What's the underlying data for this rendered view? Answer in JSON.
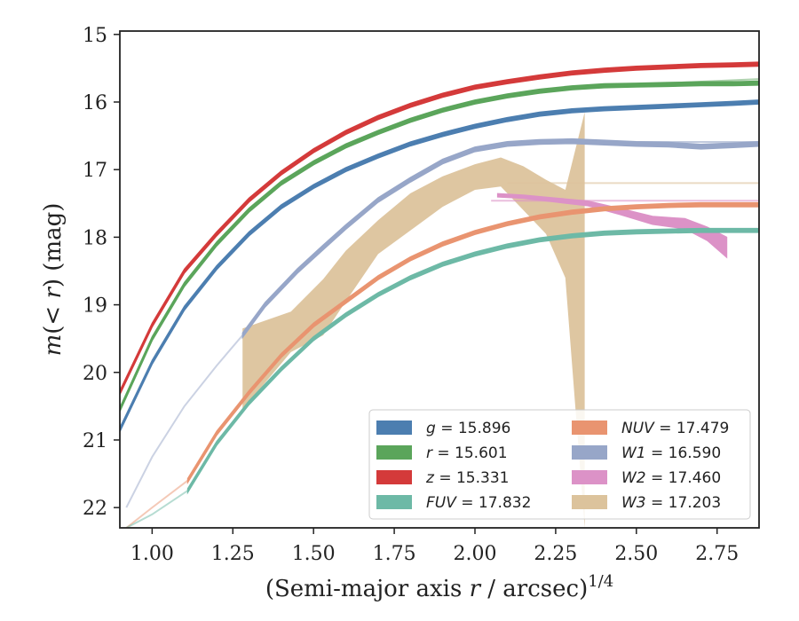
{
  "chart_data": {
    "type": "line",
    "xlabel": "(Semi-major axis r / arcsec)",
    "xlabel_var": "r",
    "xlabel_exp": "1/4",
    "ylabel": "m(< r) (mag)",
    "xlim": [
      0.9,
      2.88
    ],
    "ylim": [
      22.3,
      14.95
    ],
    "y_inverted": true,
    "xticks": [
      1.0,
      1.25,
      1.5,
      1.75,
      2.0,
      2.25,
      2.5,
      2.75
    ],
    "xtick_labels": [
      "1.00",
      "1.25",
      "1.50",
      "1.75",
      "2.00",
      "2.25",
      "2.50",
      "2.75"
    ],
    "yticks": [
      15,
      16,
      17,
      18,
      19,
      20,
      21,
      22
    ],
    "ytick_labels": [
      "15",
      "16",
      "17",
      "18",
      "19",
      "20",
      "21",
      "22"
    ],
    "grid": false,
    "legend_position": "lower-right",
    "legend_columns": 2,
    "series": [
      {
        "name": "g = 15.896",
        "label_var": "g",
        "label_val": "15.896",
        "color": "#4c7eb0",
        "x": [
          0.9,
          1.0,
          1.1,
          1.2,
          1.3,
          1.4,
          1.5,
          1.6,
          1.7,
          1.8,
          1.9,
          2.0,
          2.1,
          2.2,
          2.3,
          2.4,
          2.5,
          2.6,
          2.7,
          2.8,
          2.88
        ],
        "y": [
          20.85,
          19.85,
          19.05,
          18.45,
          17.95,
          17.55,
          17.25,
          17.0,
          16.8,
          16.62,
          16.48,
          16.36,
          16.26,
          16.18,
          16.13,
          16.1,
          16.08,
          16.06,
          16.04,
          16.02,
          16.0
        ],
        "width": 0.06,
        "faint": {
          "x": [
            2.5,
            2.88
          ],
          "y": [
            16.07,
            15.98
          ]
        }
      },
      {
        "name": "r = 15.601",
        "label_var": "r",
        "label_val": "15.601",
        "color": "#5ba55b",
        "x": [
          0.9,
          1.0,
          1.1,
          1.2,
          1.3,
          1.4,
          1.5,
          1.6,
          1.7,
          1.8,
          1.9,
          2.0,
          2.1,
          2.2,
          2.3,
          2.4,
          2.5,
          2.6,
          2.7,
          2.8,
          2.88
        ],
        "y": [
          20.55,
          19.5,
          18.7,
          18.1,
          17.6,
          17.2,
          16.9,
          16.65,
          16.45,
          16.27,
          16.12,
          16.0,
          15.91,
          15.84,
          15.79,
          15.76,
          15.75,
          15.74,
          15.73,
          15.73,
          15.72
        ],
        "width": 0.06,
        "faint": {
          "x": [
            2.5,
            2.88
          ],
          "y": [
            15.74,
            15.66
          ]
        }
      },
      {
        "name": "z = 15.331",
        "label_var": "z",
        "label_val": "15.331",
        "color": "#d43a3a",
        "x": [
          0.9,
          1.0,
          1.1,
          1.2,
          1.3,
          1.4,
          1.5,
          1.6,
          1.7,
          1.8,
          1.9,
          2.0,
          2.1,
          2.2,
          2.3,
          2.4,
          2.5,
          2.6,
          2.7,
          2.8,
          2.88
        ],
        "y": [
          20.3,
          19.3,
          18.5,
          17.95,
          17.45,
          17.05,
          16.72,
          16.45,
          16.23,
          16.05,
          15.9,
          15.78,
          15.7,
          15.63,
          15.57,
          15.53,
          15.5,
          15.48,
          15.46,
          15.45,
          15.44
        ],
        "width": 0.06,
        "faint": {
          "x": [
            2.5,
            2.88
          ],
          "y": [
            15.48,
            15.42
          ]
        }
      },
      {
        "name": "FUV = 17.832",
        "label_var": "FUV",
        "label_val": "17.832",
        "color": "#6db9a6",
        "x": [
          1.11,
          1.2,
          1.3,
          1.4,
          1.5,
          1.6,
          1.7,
          1.8,
          1.9,
          2.0,
          2.1,
          2.2,
          2.3,
          2.4,
          2.5,
          2.6,
          2.7,
          2.8,
          2.88
        ],
        "y": [
          21.75,
          21.05,
          20.45,
          19.95,
          19.5,
          19.15,
          18.85,
          18.6,
          18.4,
          18.25,
          18.13,
          18.04,
          17.98,
          17.94,
          17.92,
          17.91,
          17.9,
          17.9,
          17.9
        ],
        "width": 0.06,
        "faint": {
          "x": [
            0.92,
            1.0,
            1.11
          ],
          "y": [
            22.3,
            22.1,
            21.75
          ]
        }
      },
      {
        "name": "NUV = 17.479",
        "label_var": "NUV",
        "label_val": "17.479",
        "color": "#e99470",
        "x": [
          1.11,
          1.2,
          1.3,
          1.4,
          1.5,
          1.6,
          1.7,
          1.8,
          1.9,
          2.0,
          2.1,
          2.2,
          2.3,
          2.4,
          2.5,
          2.6,
          2.7,
          2.8,
          2.88
        ],
        "y": [
          21.6,
          20.9,
          20.3,
          19.75,
          19.3,
          18.95,
          18.6,
          18.32,
          18.1,
          17.93,
          17.8,
          17.7,
          17.63,
          17.58,
          17.55,
          17.53,
          17.52,
          17.52,
          17.52
        ],
        "width": 0.06,
        "faint": {
          "x": [
            0.92,
            1.0,
            1.11
          ],
          "y": [
            22.3,
            22.0,
            21.6
          ]
        }
      },
      {
        "name": "W1 = 16.590",
        "label_var": "W1",
        "label_val": "16.590",
        "color": "#97a6c8",
        "x": [
          1.28,
          1.35,
          1.45,
          1.53,
          1.6,
          1.7,
          1.8,
          1.9,
          2.0,
          2.1,
          2.2,
          2.3,
          2.4,
          2.5,
          2.6,
          2.7,
          2.8,
          2.88
        ],
        "y": [
          19.45,
          19.0,
          18.5,
          18.15,
          17.85,
          17.45,
          17.15,
          16.88,
          16.7,
          16.62,
          16.59,
          16.58,
          16.6,
          16.62,
          16.63,
          16.66,
          16.64,
          16.62
        ],
        "width": 0.07,
        "faint": {
          "x": [
            0.92,
            1.0,
            1.1,
            1.2,
            1.28
          ],
          "y": [
            22.0,
            21.25,
            20.5,
            19.9,
            19.45
          ]
        }
      },
      {
        "name": "W2 = 17.460",
        "label_var": "W2",
        "label_val": "17.460",
        "color": "#dc92c7",
        "x": [
          2.07,
          2.15,
          2.25,
          2.35,
          2.45,
          2.55,
          2.65,
          2.72,
          2.78
        ],
        "y": [
          17.38,
          17.4,
          17.45,
          17.5,
          17.62,
          17.75,
          17.8,
          17.95,
          18.15
        ],
        "width": [
          0.05,
          0.05,
          0.06,
          0.07,
          0.09,
          0.12,
          0.15,
          0.2,
          0.3
        ]
      },
      {
        "name": "W3 = 17.203",
        "label_var": "W3",
        "label_val": "17.203",
        "color": "#dcc39c",
        "band_x": [
          1.28,
          1.43,
          1.53,
          1.6,
          1.7,
          1.8,
          1.9,
          2.0,
          2.08,
          2.15,
          2.22,
          2.28,
          2.34
        ],
        "band_upper": [
          19.35,
          19.1,
          18.62,
          18.2,
          17.75,
          17.35,
          17.1,
          16.92,
          16.82,
          16.95,
          17.15,
          17.3,
          16.15
        ],
        "band_lower": [
          20.55,
          19.7,
          19.45,
          18.95,
          18.25,
          17.9,
          17.55,
          17.3,
          17.25,
          17.6,
          17.95,
          18.6,
          22.3
        ]
      }
    ],
    "reference_lines": [
      {
        "series": "W1 = 16.590",
        "y": 16.59,
        "x_start": 2.15
      },
      {
        "series": "W2 = 17.460",
        "y": 17.46,
        "x_start": 2.05
      },
      {
        "series": "W3 = 17.203",
        "y": 17.2,
        "x_start": 2.1
      }
    ]
  }
}
